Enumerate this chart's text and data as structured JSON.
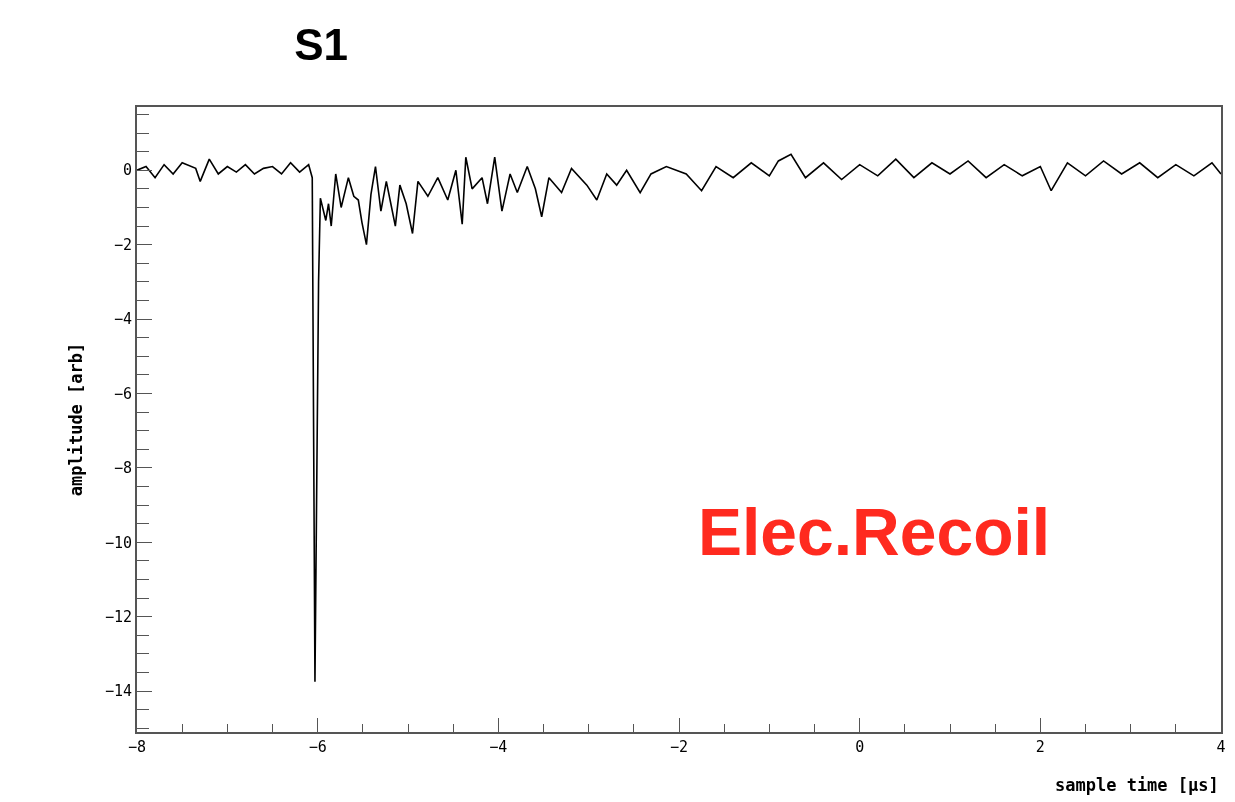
{
  "chart_data": {
    "type": "line",
    "title": "S1",
    "xlabel": "sample time [μs]",
    "ylabel": "amplitude [arb]",
    "annotations": [
      "Elec.Recoil"
    ],
    "x": [
      -8.0,
      -7.9,
      -7.8,
      -7.7,
      -7.6,
      -7.5,
      -7.35,
      -7.3,
      -7.2,
      -7.1,
      -7.0,
      -6.9,
      -6.8,
      -6.7,
      -6.6,
      -6.5,
      -6.4,
      -6.3,
      -6.2,
      -6.1,
      -6.06,
      -6.03,
      -5.99,
      -5.97,
      -5.91,
      -5.88,
      -5.85,
      -5.8,
      -5.74,
      -5.66,
      -5.6,
      -5.55,
      -5.51,
      -5.46,
      -5.41,
      -5.36,
      -5.3,
      -5.24,
      -5.19,
      -5.14,
      -5.09,
      -5.02,
      -4.95,
      -4.89,
      -4.78,
      -4.67,
      -4.56,
      -4.47,
      -4.4,
      -4.36,
      -4.29,
      -4.18,
      -4.12,
      -4.04,
      -3.96,
      -3.87,
      -3.79,
      -3.68,
      -3.59,
      -3.52,
      -3.44,
      -3.3,
      -3.19,
      -3.02,
      -2.91,
      -2.8,
      -2.69,
      -2.58,
      -2.43,
      -2.31,
      -2.14,
      -1.92,
      -1.75,
      -1.59,
      -1.4,
      -1.2,
      -1.0,
      -0.9,
      -0.76,
      -0.6,
      -0.4,
      -0.2,
      0.0,
      0.2,
      0.4,
      0.6,
      0.8,
      1.0,
      1.2,
      1.4,
      1.6,
      1.8,
      2.0,
      2.12,
      2.3,
      2.5,
      2.7,
      2.9,
      3.1,
      3.3,
      3.5,
      3.7,
      3.9,
      4.0
    ],
    "series": [
      {
        "color": "#000000",
        "values": [
          0.0,
          0.1,
          -0.2,
          0.15,
          -0.1,
          0.2,
          0.05,
          -0.3,
          0.3,
          -0.1,
          0.1,
          -0.05,
          0.15,
          -0.1,
          0.05,
          0.1,
          -0.1,
          0.2,
          -0.05,
          0.15,
          -0.2,
          -13.75,
          -3.0,
          -0.75,
          -1.35,
          -0.9,
          -1.5,
          -0.1,
          -1.0,
          -0.2,
          -0.7,
          -0.8,
          -1.4,
          -2.0,
          -0.65,
          0.1,
          -1.1,
          -0.3,
          -0.9,
          -1.5,
          -0.4,
          -0.9,
          -1.7,
          -0.3,
          -0.7,
          -0.2,
          -0.8,
          0.0,
          -1.45,
          0.35,
          -0.5,
          -0.2,
          -0.9,
          0.35,
          -1.1,
          -0.1,
          -0.6,
          0.1,
          -0.5,
          -1.25,
          -0.2,
          -0.6,
          0.05,
          -0.4,
          -0.8,
          -0.1,
          -0.4,
          0.0,
          -0.6,
          -0.1,
          0.1,
          -0.1,
          -0.55,
          0.1,
          -0.2,
          0.2,
          -0.15,
          0.25,
          0.43,
          -0.2,
          0.2,
          -0.25,
          0.15,
          -0.15,
          0.3,
          -0.2,
          0.2,
          -0.1,
          0.25,
          -0.2,
          0.15,
          -0.15,
          0.1,
          -0.55,
          0.2,
          -0.15,
          0.25,
          -0.1,
          0.2,
          -0.2,
          0.15,
          -0.15,
          0.2,
          -0.1
        ]
      }
    ],
    "xlim": [
      -8,
      4
    ],
    "ylim": [
      -15.1,
      1.7
    ],
    "xticks": [
      -8,
      -6,
      -4,
      -2,
      0,
      2,
      4
    ],
    "yticks": [
      -14,
      -12,
      -10,
      -8,
      -6,
      -4,
      -2,
      0
    ],
    "grid": false,
    "marker": "none",
    "line_style": "solid"
  }
}
